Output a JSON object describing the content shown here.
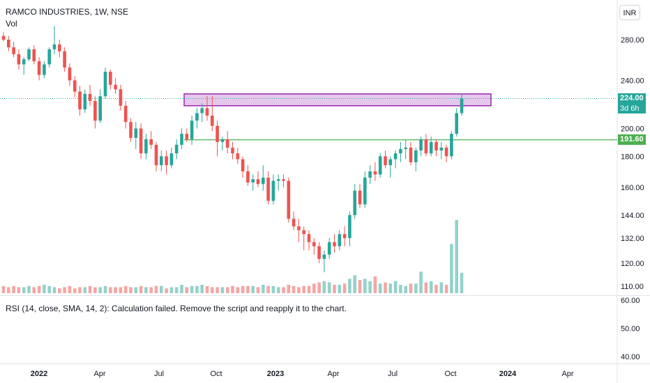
{
  "header": {
    "symbol_title": "RAMCO INDUSTRIES, 1W, NSE",
    "vol_label": "Vol",
    "currency": "INR"
  },
  "rsi": {
    "message": "RSI (14, close, SMA, 14, 2): Calculation failed. Remove the script and reapply it to the chart."
  },
  "price_tags": {
    "last_price": "224.00",
    "countdown": "3d 6h",
    "level": "191.60"
  },
  "colors": {
    "up": "#26a69a",
    "down": "#ef5350",
    "vol_up": "#93d2cb",
    "vol_down": "#f5a6a3",
    "zone_fill": "#e1bee7",
    "zone_border": "#9c27b0",
    "level_line": "#4caf50"
  },
  "chart_data": {
    "type": "candlestick",
    "interval": "1W",
    "scale": "log",
    "price_axis_ticks": [
      280,
      240,
      200,
      180,
      160,
      144,
      132,
      120,
      110
    ],
    "rsi_axis_ticks": [
      60,
      50,
      40
    ],
    "x_axis_ticks": [
      {
        "label": "2022",
        "bold": true
      },
      {
        "label": "Apr",
        "bold": false
      },
      {
        "label": "Jul",
        "bold": false
      },
      {
        "label": "Oct",
        "bold": false
      },
      {
        "label": "2023",
        "bold": true
      },
      {
        "label": "Apr",
        "bold": false
      },
      {
        "label": "Jul",
        "bold": false
      },
      {
        "label": "Oct",
        "bold": false
      },
      {
        "label": "2024",
        "bold": true
      },
      {
        "label": "Apr",
        "bold": false
      }
    ],
    "horizontal_level": 191.6,
    "resistance_zone": {
      "low": 218,
      "high": 228
    },
    "last_price": 224,
    "ohlc": [
      [
        284,
        288,
        278,
        280
      ],
      [
        280,
        284,
        268,
        272
      ],
      [
        272,
        278,
        262,
        265
      ],
      [
        265,
        270,
        250,
        255
      ],
      [
        255,
        262,
        245,
        260
      ],
      [
        260,
        272,
        258,
        270
      ],
      [
        270,
        274,
        255,
        258
      ],
      [
        258,
        262,
        240,
        245
      ],
      [
        245,
        258,
        242,
        255
      ],
      [
        255,
        272,
        252,
        270
      ],
      [
        270,
        295,
        265,
        275
      ],
      [
        275,
        280,
        262,
        268
      ],
      [
        268,
        272,
        248,
        252
      ],
      [
        252,
        256,
        235,
        240
      ],
      [
        240,
        244,
        225,
        230
      ],
      [
        230,
        235,
        210,
        215
      ],
      [
        215,
        232,
        212,
        228
      ],
      [
        228,
        236,
        218,
        222
      ],
      [
        222,
        226,
        200,
        206
      ],
      [
        206,
        232,
        204,
        226
      ],
      [
        226,
        252,
        224,
        248
      ],
      [
        248,
        250,
        232,
        236
      ],
      [
        236,
        242,
        228,
        232
      ],
      [
        232,
        236,
        214,
        218
      ],
      [
        218,
        222,
        200,
        205
      ],
      [
        205,
        208,
        190,
        193
      ],
      [
        193,
        205,
        185,
        200
      ],
      [
        200,
        204,
        178,
        182
      ],
      [
        182,
        196,
        178,
        192
      ],
      [
        192,
        198,
        185,
        188
      ],
      [
        188,
        190,
        170,
        174
      ],
      [
        174,
        184,
        170,
        180
      ],
      [
        180,
        184,
        168,
        174
      ],
      [
        174,
        186,
        172,
        182
      ],
      [
        182,
        192,
        178,
        188
      ],
      [
        188,
        200,
        185,
        196
      ],
      [
        196,
        200,
        190,
        192
      ],
      [
        192,
        210,
        188,
        206
      ],
      [
        206,
        216,
        200,
        212
      ],
      [
        212,
        220,
        205,
        216
      ],
      [
        216,
        226,
        206,
        210
      ],
      [
        210,
        226,
        198,
        202
      ],
      [
        202,
        206,
        180,
        190
      ],
      [
        190,
        194,
        184,
        192
      ],
      [
        192,
        198,
        182,
        186
      ],
      [
        186,
        190,
        178,
        182
      ],
      [
        182,
        186,
        175,
        178
      ],
      [
        178,
        180,
        166,
        170
      ],
      [
        170,
        174,
        161,
        163
      ],
      [
        163,
        168,
        158,
        165
      ],
      [
        165,
        170,
        160,
        162
      ],
      [
        162,
        174,
        158,
        166
      ],
      [
        166,
        170,
        150,
        152
      ],
      [
        152,
        168,
        150,
        164
      ],
      [
        164,
        168,
        158,
        165
      ],
      [
        165,
        168,
        160,
        164
      ],
      [
        164,
        166,
        140,
        142
      ],
      [
        142,
        146,
        136,
        138
      ],
      [
        138,
        142,
        130,
        136
      ],
      [
        136,
        138,
        126,
        134
      ],
      [
        134,
        136,
        126,
        130
      ],
      [
        130,
        132,
        124,
        128
      ],
      [
        128,
        130,
        120,
        122
      ],
      [
        122,
        126,
        116,
        124
      ],
      [
        124,
        132,
        122,
        130
      ],
      [
        130,
        134,
        125,
        128
      ],
      [
        128,
        136,
        126,
        134
      ],
      [
        134,
        138,
        128,
        132
      ],
      [
        132,
        146,
        128,
        144
      ],
      [
        144,
        162,
        142,
        158
      ],
      [
        158,
        162,
        148,
        150
      ],
      [
        150,
        170,
        148,
        166
      ],
      [
        166,
        174,
        162,
        170
      ],
      [
        170,
        176,
        164,
        168
      ],
      [
        168,
        182,
        166,
        180
      ],
      [
        180,
        184,
        172,
        174
      ],
      [
        174,
        180,
        166,
        178
      ],
      [
        178,
        184,
        172,
        182
      ],
      [
        182,
        190,
        176,
        185
      ],
      [
        185,
        192,
        178,
        186
      ],
      [
        186,
        190,
        174,
        176
      ],
      [
        176,
        186,
        170,
        184
      ],
      [
        184,
        194,
        180,
        192
      ],
      [
        192,
        196,
        180,
        182
      ],
      [
        182,
        194,
        180,
        190
      ],
      [
        190,
        192,
        180,
        184
      ],
      [
        184,
        190,
        178,
        186
      ],
      [
        186,
        188,
        176,
        180
      ],
      [
        180,
        198,
        178,
        196
      ],
      [
        196,
        216,
        194,
        212
      ],
      [
        212,
        228,
        210,
        224
      ]
    ],
    "volume": [
      6,
      5,
      6,
      5,
      5,
      6,
      5,
      6,
      7,
      6,
      5,
      4,
      5,
      6,
      4,
      5,
      5,
      6,
      5,
      5,
      6,
      5,
      5,
      5,
      6,
      5,
      5,
      6,
      5,
      5,
      6,
      6,
      4,
      5,
      5,
      7,
      5,
      6,
      6,
      7,
      6,
      5,
      5,
      5,
      5,
      6,
      5,
      6,
      6,
      6,
      5,
      7,
      6,
      6,
      5,
      5,
      7,
      6,
      5,
      6,
      6,
      8,
      9,
      10,
      9,
      7,
      7,
      8,
      12,
      15,
      11,
      12,
      10,
      14,
      8,
      9,
      8,
      10,
      7,
      6,
      8,
      8,
      18,
      9,
      10,
      7,
      9,
      7,
      41,
      61,
      17
    ]
  }
}
